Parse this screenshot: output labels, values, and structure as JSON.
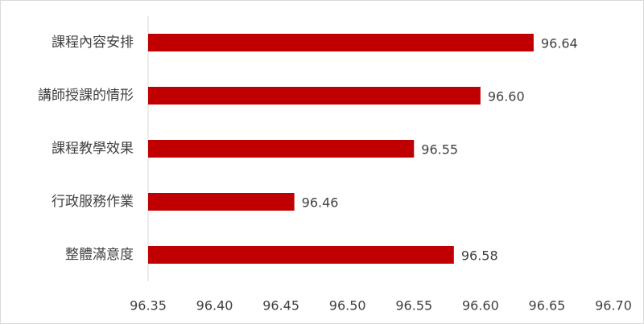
{
  "chart_data": {
    "type": "bar",
    "orientation": "horizontal",
    "categories": [
      "課程內容安排",
      "講師授課的情形",
      "課程教學效果",
      "行政服務作業",
      "整體滿意度"
    ],
    "values": [
      96.64,
      96.6,
      96.55,
      96.46,
      96.58
    ],
    "value_labels": [
      "96.64",
      "96.60",
      "96.55",
      "96.46",
      "96.58"
    ],
    "color": "#c00000",
    "xlim": [
      96.35,
      96.7
    ],
    "xticks": [
      96.35,
      {
        "value": 96.4,
        "label": "96.40"
      },
      96.45,
      {
        "value": 96.5,
        "label": "96.50"
      },
      96.55,
      {
        "value": 96.6,
        "label": "96.60"
      },
      96.65,
      {
        "value": 96.7,
        "label": "96.70"
      }
    ],
    "grid": false
  }
}
